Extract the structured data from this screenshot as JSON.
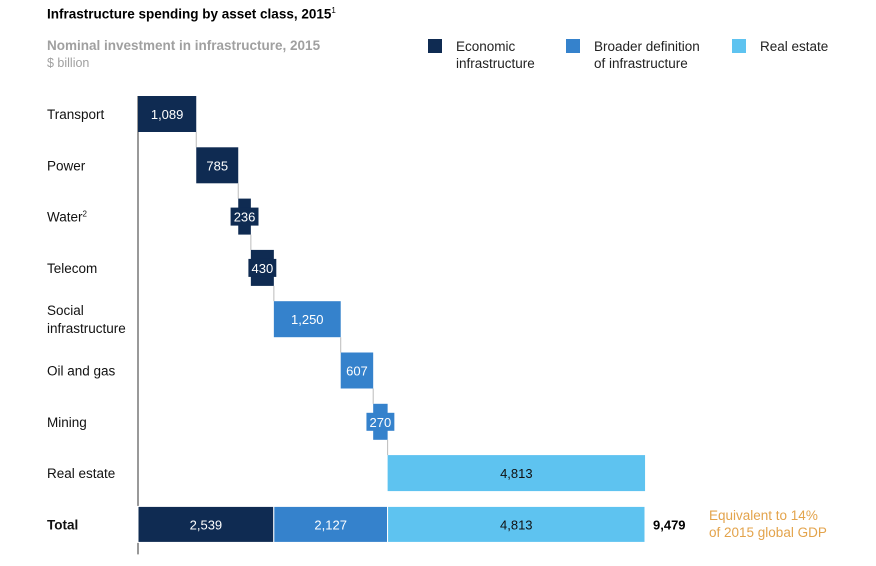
{
  "header": {
    "title": "Infrastructure spending by asset class, 2015",
    "title_sup": "1",
    "subtitle": "Nominal investment in infrastructure, 2015",
    "unit": "$ billion"
  },
  "legend": [
    {
      "label": "Economic\ninfrastructure",
      "color": "#0f2b52"
    },
    {
      "label": "Broader definition\nof infrastructure",
      "color": "#3582cc"
    },
    {
      "label": "Real estate",
      "color": "#5ec3f0"
    }
  ],
  "note": "Equivalent to 14%\nof 2015 global GDP",
  "chart_data": {
    "type": "bar",
    "subtype": "waterfall",
    "title": "Infrastructure spending by asset class, 2015",
    "subtitle": "Nominal investment in infrastructure, 2015",
    "unit": "$ billion",
    "categories": [
      "Transport",
      "Power",
      "Water",
      "Telecom",
      "Social infrastructure",
      "Oil and gas",
      "Mining",
      "Real estate"
    ],
    "category_sups": [
      "",
      "",
      "2",
      "",
      "",
      "",
      "",
      ""
    ],
    "values": [
      1089,
      785,
      236,
      430,
      1250,
      607,
      270,
      4813
    ],
    "value_labels": [
      "1,089",
      "785",
      "236",
      "430",
      "1,250",
      "607",
      "270",
      "4,813"
    ],
    "groups": [
      "Economic infrastructure",
      "Economic infrastructure",
      "Economic infrastructure",
      "Economic infrastructure",
      "Broader definition of infrastructure",
      "Broader definition of infrastructure",
      "Broader definition of infrastructure",
      "Real estate"
    ],
    "colors": {
      "Economic infrastructure": "#0f2b52",
      "Broader definition of infrastructure": "#3582cc",
      "Real estate": "#5ec3f0"
    },
    "total": {
      "label": "Total",
      "segments": [
        {
          "group": "Economic infrastructure",
          "value": 2539,
          "label": "2,539"
        },
        {
          "group": "Broader definition of infrastructure",
          "value": 2127,
          "label": "2,127"
        },
        {
          "group": "Real estate",
          "value": 4813,
          "label": "4,813"
        }
      ],
      "value": 9479,
      "value_label": "9,479"
    },
    "legend_position": "top-right",
    "grid": false
  }
}
